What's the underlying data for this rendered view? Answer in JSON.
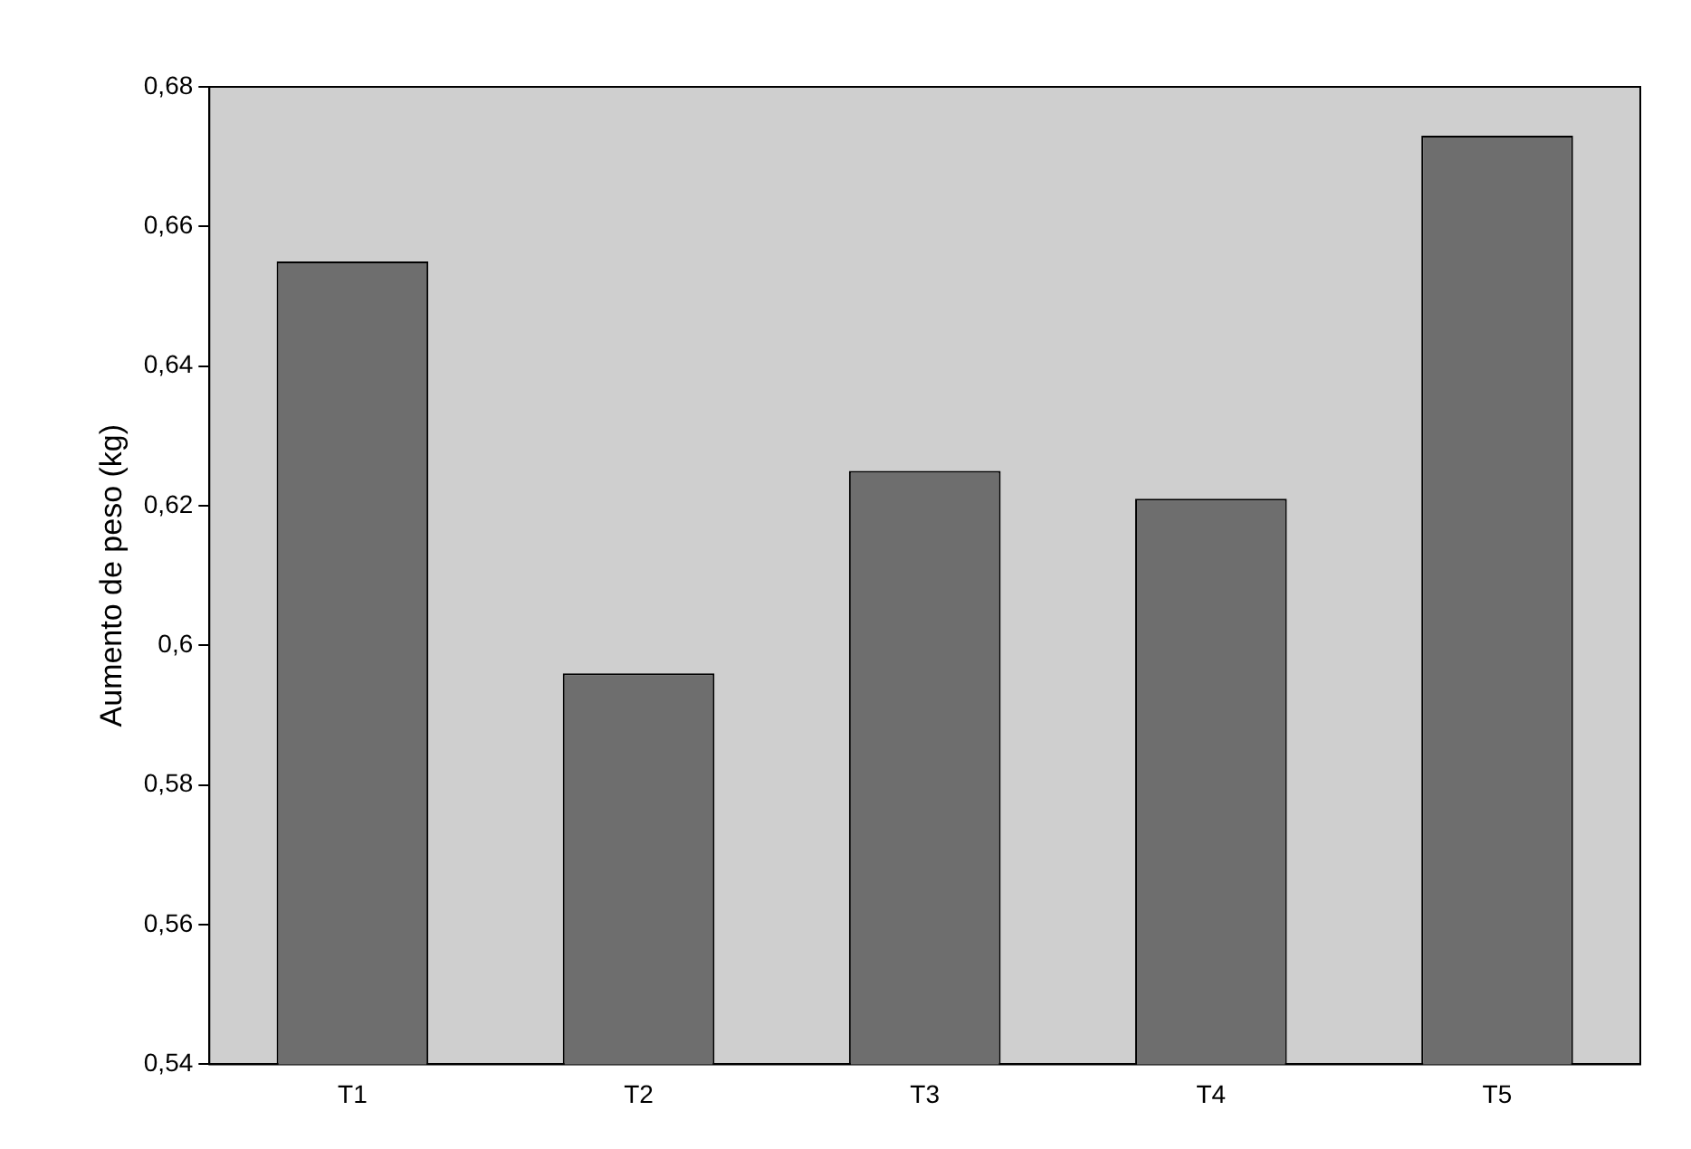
{
  "chart_data": {
    "type": "bar",
    "ylabel": "Aumento de peso (kg)",
    "categories": [
      "T1",
      "T2",
      "T3",
      "T4",
      "T5"
    ],
    "values": [
      0.655,
      0.596,
      0.625,
      0.621,
      0.673
    ],
    "color": "#6e6e6e",
    "ylim": [
      0.54,
      0.68
    ],
    "yticks": [
      {
        "value": 0.54,
        "label": "0,54"
      },
      {
        "value": 0.56,
        "label": "0,56"
      },
      {
        "value": 0.58,
        "label": "0,58"
      },
      {
        "value": 0.6,
        "label": "0,6"
      },
      {
        "value": 0.62,
        "label": "0,62"
      },
      {
        "value": 0.64,
        "label": "0,64"
      },
      {
        "value": 0.66,
        "label": "0,66"
      },
      {
        "value": 0.68,
        "label": "0,68"
      }
    ],
    "grid": false,
    "legend": false
  }
}
